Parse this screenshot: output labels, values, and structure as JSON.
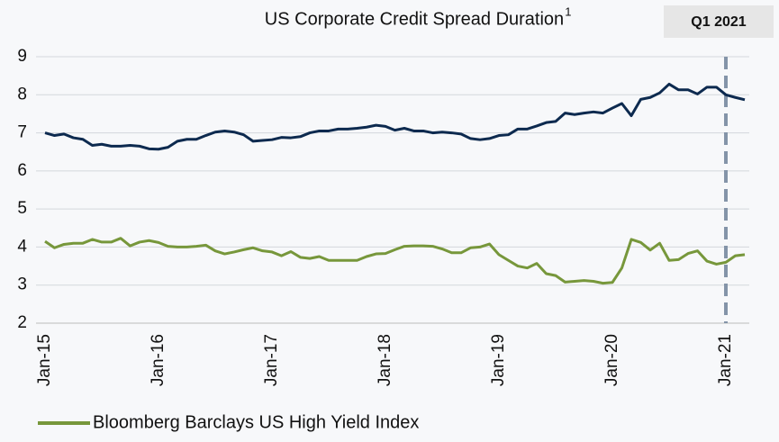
{
  "chart_data": {
    "type": "line",
    "title": "US Corporate Credit Spread Duration",
    "title_superscript": "1",
    "badge": "Q1 2021",
    "categories": [
      "Jan-15",
      null,
      null,
      null,
      null,
      null,
      null,
      null,
      null,
      null,
      null,
      null,
      "Jan-16",
      null,
      null,
      null,
      null,
      null,
      null,
      null,
      null,
      null,
      null,
      null,
      "Jan-17",
      null,
      null,
      null,
      null,
      null,
      null,
      null,
      null,
      null,
      null,
      null,
      "Jan-18",
      null,
      null,
      null,
      null,
      null,
      null,
      null,
      null,
      null,
      null,
      null,
      "Jan-19",
      null,
      null,
      null,
      null,
      null,
      null,
      null,
      null,
      null,
      null,
      null,
      "Jan-20",
      null,
      null,
      null,
      null,
      null,
      null,
      null,
      null,
      null,
      null,
      null,
      "Jan-21",
      null,
      null
    ],
    "series": [
      {
        "color": "#0d2a4f",
        "values": [
          7.0,
          6.93,
          6.97,
          6.87,
          6.83,
          6.67,
          6.7,
          6.65,
          6.65,
          6.67,
          6.65,
          6.58,
          6.57,
          6.62,
          6.78,
          6.83,
          6.83,
          6.93,
          7.02,
          7.05,
          7.02,
          6.95,
          6.78,
          6.8,
          6.82,
          6.88,
          6.87,
          6.9,
          7.0,
          7.05,
          7.05,
          7.1,
          7.1,
          7.12,
          7.15,
          7.2,
          7.17,
          7.07,
          7.12,
          7.05,
          7.05,
          7.0,
          7.02,
          7.0,
          6.97,
          6.85,
          6.82,
          6.85,
          6.93,
          6.95,
          7.1,
          7.1,
          7.18,
          7.27,
          7.3,
          7.52,
          7.48,
          7.52,
          7.55,
          7.52,
          7.65,
          7.77,
          7.45,
          7.88,
          7.93,
          8.05,
          8.28,
          8.13,
          8.13,
          8.02,
          8.2,
          8.2,
          8.0,
          7.93,
          7.87
        ]
      },
      {
        "name": "Bloomberg Barclays US High Yield Index",
        "color": "#77973b",
        "values": [
          4.15,
          3.98,
          4.07,
          4.1,
          4.1,
          4.2,
          4.13,
          4.13,
          4.23,
          4.03,
          4.13,
          4.17,
          4.12,
          4.02,
          4.0,
          4.0,
          4.02,
          4.05,
          3.9,
          3.82,
          3.87,
          3.93,
          3.98,
          3.9,
          3.87,
          3.77,
          3.88,
          3.73,
          3.7,
          3.75,
          3.65,
          3.65,
          3.65,
          3.65,
          3.75,
          3.82,
          3.83,
          3.93,
          4.02,
          4.03,
          4.03,
          4.02,
          3.95,
          3.85,
          3.85,
          3.98,
          4.0,
          4.08,
          3.8,
          3.65,
          3.5,
          3.45,
          3.57,
          3.3,
          3.25,
          3.08,
          3.1,
          3.12,
          3.1,
          3.05,
          3.07,
          3.45,
          4.2,
          4.12,
          3.92,
          4.1,
          3.65,
          3.67,
          3.83,
          3.9,
          3.63,
          3.55,
          3.6,
          3.77,
          3.8
        ]
      }
    ],
    "ylim": [
      2,
      9
    ],
    "yticks": [
      2,
      3,
      4,
      5,
      6,
      7,
      8,
      9
    ],
    "grid": true,
    "highlight_x": "Jan-21"
  }
}
